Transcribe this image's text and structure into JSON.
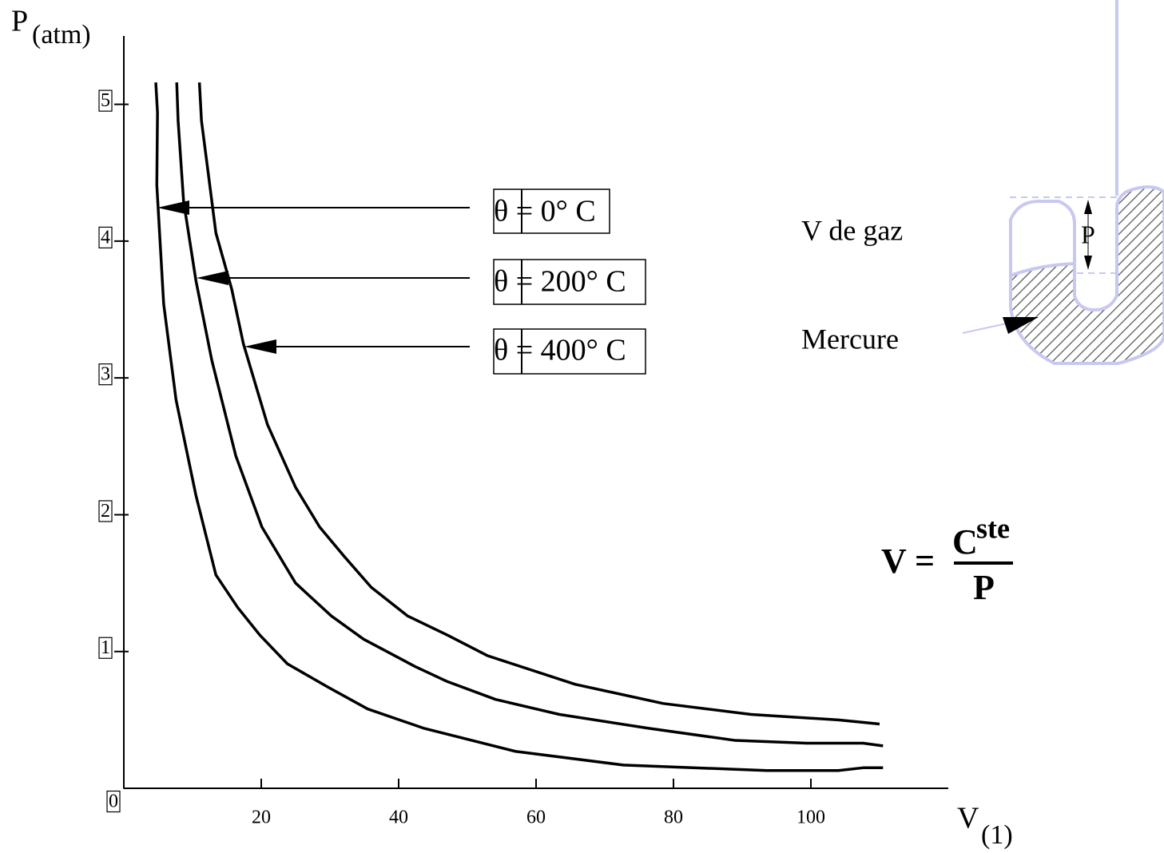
{
  "chart_data": {
    "type": "line",
    "ylabel": "P",
    "ylabel_unit": "(atm)",
    "xlabel": "V",
    "xlabel_unit": "(1)",
    "xlim": [
      0,
      120
    ],
    "ylim": [
      0,
      5.5
    ],
    "xticks": [
      20,
      40,
      60,
      80,
      100
    ],
    "yticks": [
      0,
      1,
      2,
      3,
      4,
      5
    ],
    "series": [
      {
        "name": "θ = 0° C",
        "color": "#000000",
        "x": [
          4.65,
          4.9,
          4.8,
          5.8,
          7.6,
          10.5,
          13.4,
          16.6,
          19.8,
          23.8,
          29.7,
          35.5,
          43.6,
          57,
          72.7,
          93.6,
          104,
          107.6,
          110.5
        ],
        "values": [
          5.16,
          4.94,
          4.41,
          3.54,
          2.84,
          2.14,
          1.56,
          1.32,
          1.12,
          0.91,
          0.74,
          0.58,
          0.44,
          0.27,
          0.17,
          0.13,
          0.13,
          0.15,
          0.15
        ]
      },
      {
        "name": "θ = 200° C",
        "color": "#000000",
        "x": [
          7.7,
          7.9,
          8.7,
          10.5,
          12.8,
          16.3,
          20.1,
          25,
          30.2,
          34.9,
          42.4,
          47.1,
          54.1,
          63.4,
          76.2,
          89,
          99.4,
          107.6,
          110.5
        ],
        "values": [
          5.16,
          4.88,
          4.29,
          3.71,
          3.13,
          2.43,
          1.91,
          1.5,
          1.26,
          1.09,
          0.89,
          0.78,
          0.65,
          0.54,
          0.44,
          0.35,
          0.33,
          0.33,
          0.31
        ]
      },
      {
        "name": "θ = 400° C",
        "color": "#000000",
        "x": [
          11,
          11.3,
          12.2,
          13.4,
          15.7,
          17.4,
          20.9,
          25,
          28.5,
          32,
          36,
          41.3,
          47.1,
          52.9,
          65.7,
          78.5,
          91.3,
          104,
          110
        ],
        "values": [
          5.16,
          4.88,
          4.53,
          4.06,
          3.65,
          3.25,
          2.66,
          2.2,
          1.91,
          1.7,
          1.47,
          1.26,
          1.12,
          0.97,
          0.76,
          0.62,
          0.54,
          0.5,
          0.47
        ]
      }
    ],
    "diagram": {
      "gas_label": "V de gaz",
      "mercury_label": "Mercure",
      "pressure_label": "P"
    },
    "formula": {
      "lhs": "V =",
      "numerator": "C",
      "numerator_sup": "ste",
      "denominator": "P"
    }
  }
}
